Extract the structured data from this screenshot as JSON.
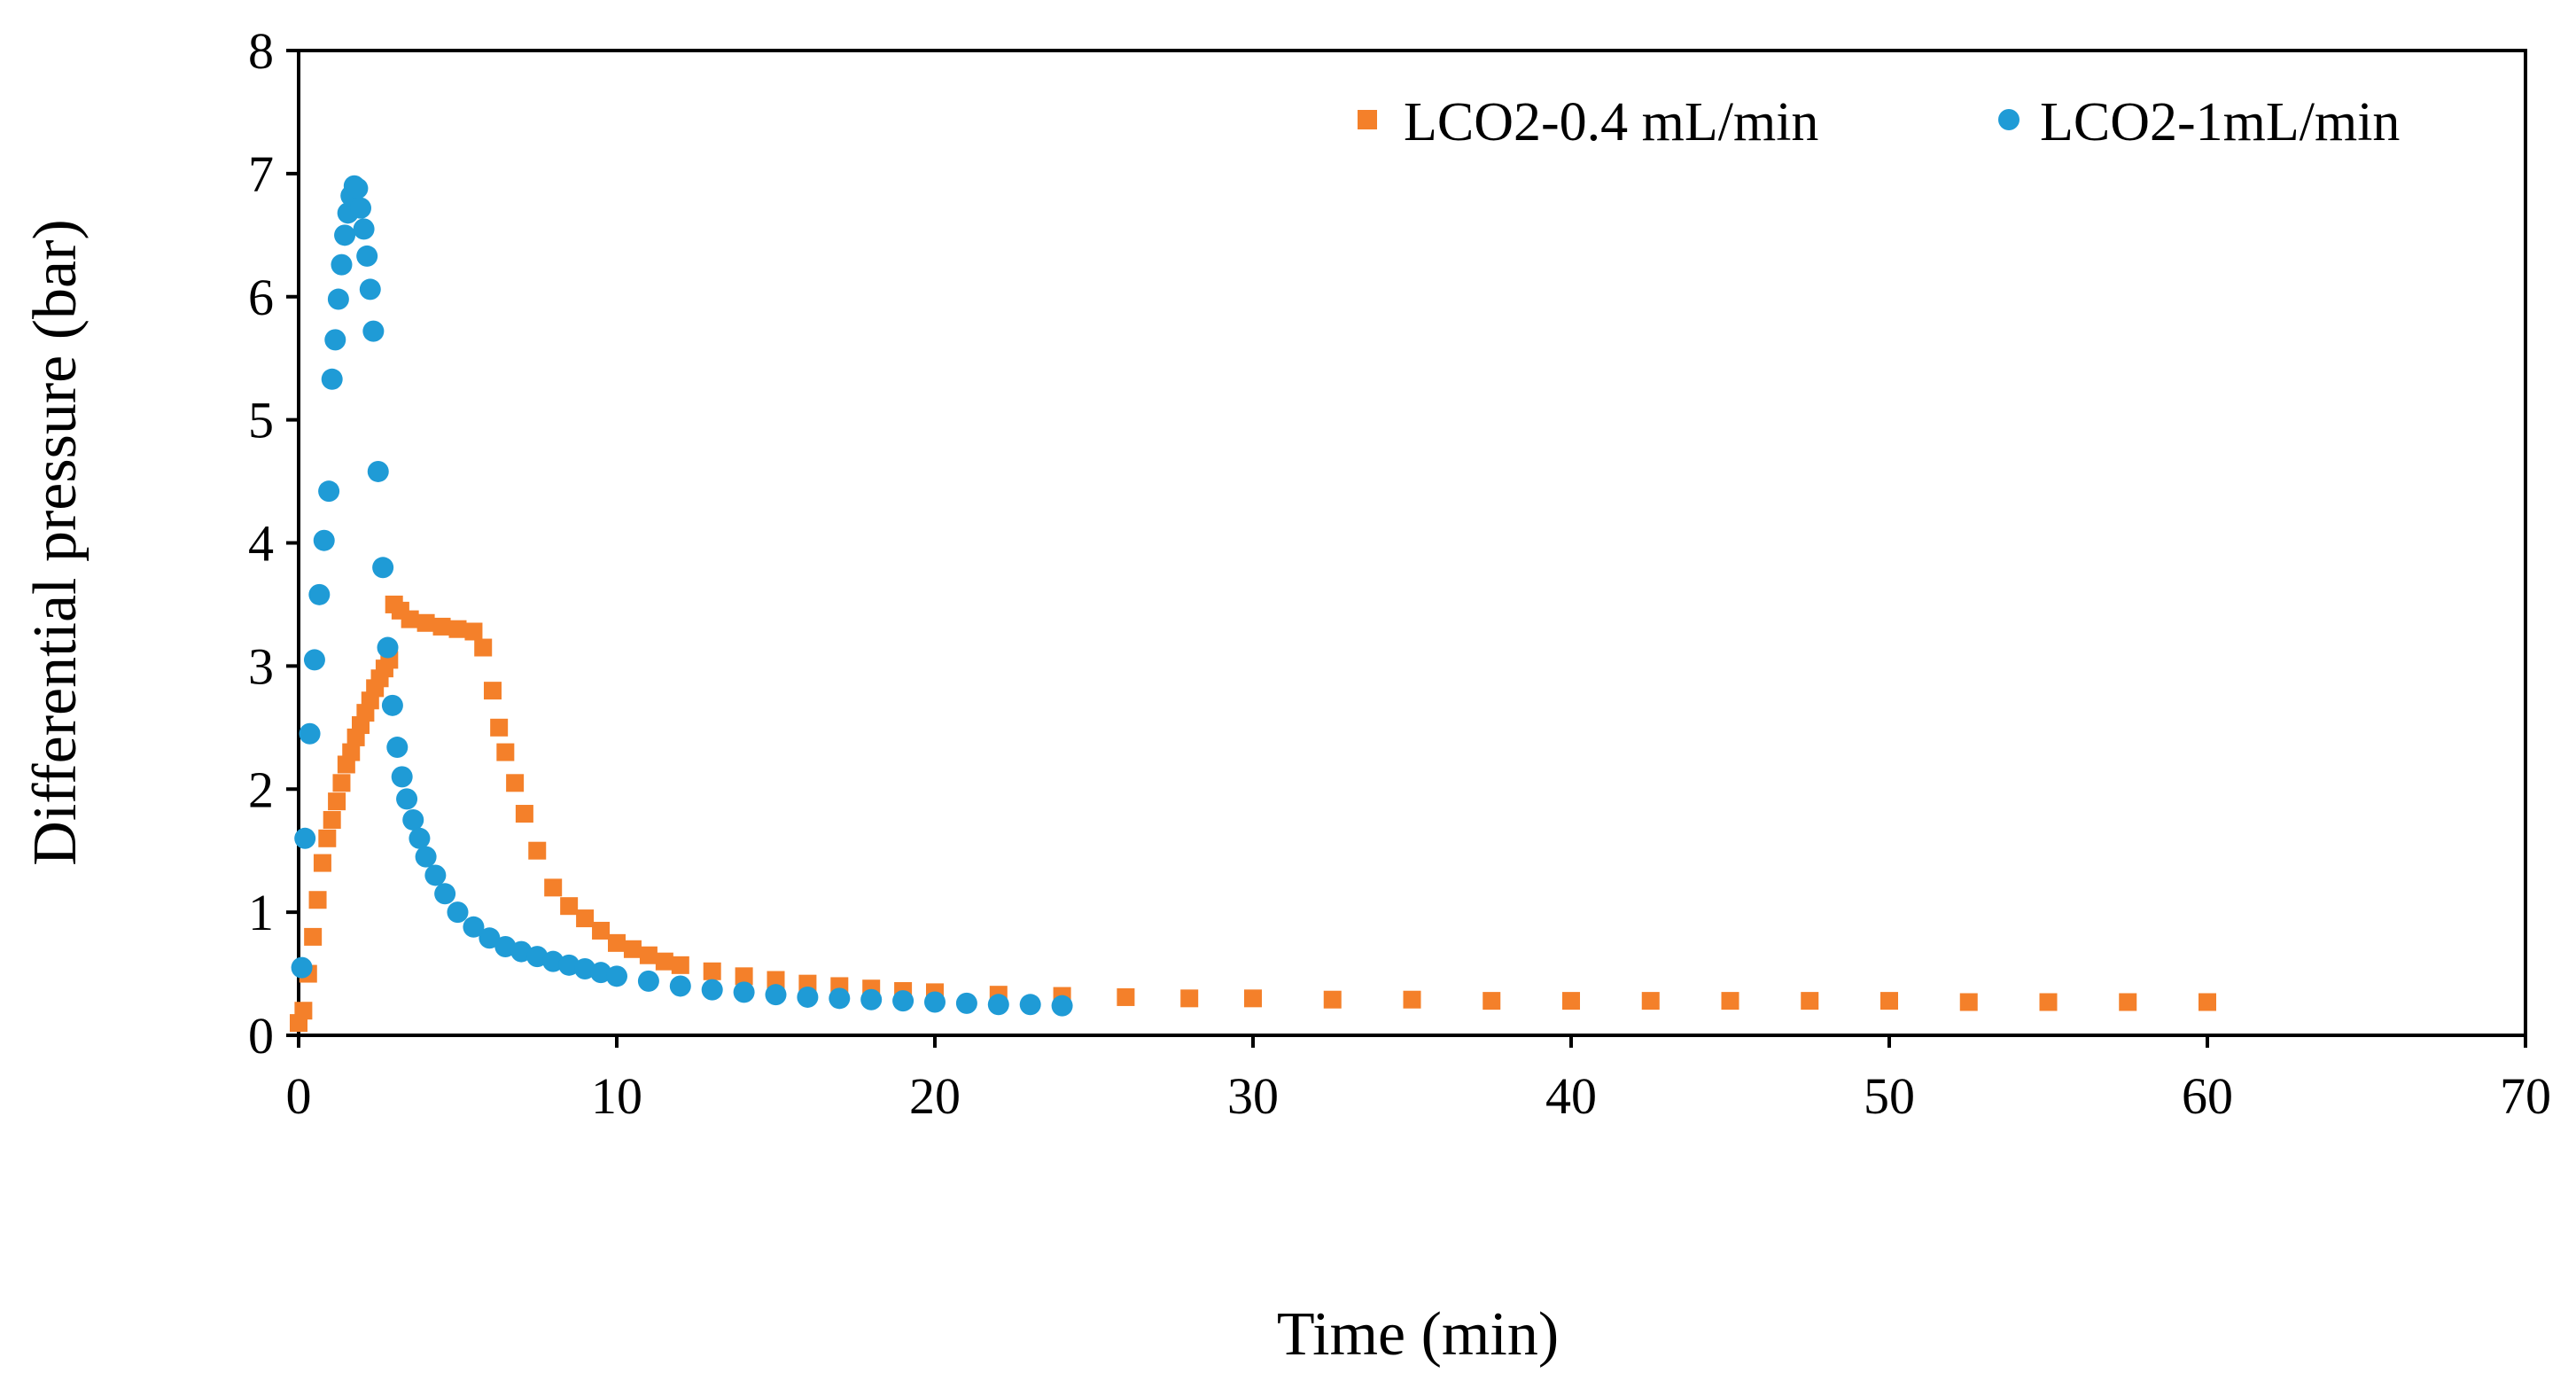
{
  "chart_data": {
    "type": "scatter",
    "title": "",
    "xlabel": "Time (min)",
    "ylabel": "Differential pressure (bar)",
    "xlim": [
      0,
      70
    ],
    "ylim": [
      0,
      8
    ],
    "xticks": [
      0,
      10,
      20,
      30,
      40,
      50,
      60,
      70
    ],
    "yticks": [
      0,
      1,
      2,
      3,
      4,
      5,
      6,
      7,
      8
    ],
    "grid": false,
    "legend_position": "top-right",
    "series": [
      {
        "name": "LCO2-0.4 mL/min",
        "marker": "square",
        "color": "#F4802A",
        "x": [
          0.0,
          0.15,
          0.3,
          0.45,
          0.6,
          0.75,
          0.9,
          1.05,
          1.2,
          1.35,
          1.5,
          1.65,
          1.8,
          1.95,
          2.1,
          2.25,
          2.4,
          2.55,
          2.7,
          2.85,
          3.0,
          3.2,
          3.5,
          4.0,
          4.5,
          5.0,
          5.5,
          5.8,
          6.1,
          6.3,
          6.5,
          6.8,
          7.1,
          7.5,
          8.0,
          8.5,
          9.0,
          9.5,
          10.0,
          10.5,
          11.0,
          11.5,
          12.0,
          13.0,
          14.0,
          15.0,
          16.0,
          17.0,
          18.0,
          19.0,
          20.0,
          22.0,
          24.0,
          26.0,
          28.0,
          30.0,
          32.5,
          35.0,
          37.5,
          40.0,
          42.5,
          45.0,
          47.5,
          50.0,
          52.5,
          55.0,
          57.5,
          60.0
        ],
        "y": [
          0.1,
          0.2,
          0.5,
          0.8,
          1.1,
          1.4,
          1.6,
          1.75,
          1.9,
          2.05,
          2.2,
          2.3,
          2.42,
          2.52,
          2.62,
          2.72,
          2.82,
          2.9,
          2.98,
          3.05,
          3.5,
          3.45,
          3.38,
          3.35,
          3.32,
          3.3,
          3.28,
          3.15,
          2.8,
          2.5,
          2.3,
          2.05,
          1.8,
          1.5,
          1.2,
          1.05,
          0.95,
          0.85,
          0.75,
          0.7,
          0.65,
          0.6,
          0.57,
          0.52,
          0.48,
          0.45,
          0.42,
          0.4,
          0.38,
          0.36,
          0.35,
          0.33,
          0.32,
          0.31,
          0.3,
          0.3,
          0.29,
          0.29,
          0.28,
          0.28,
          0.28,
          0.28,
          0.28,
          0.28,
          0.27,
          0.27,
          0.27,
          0.27
        ]
      },
      {
        "name": "LCO2-1mL/min",
        "marker": "circle",
        "color": "#1F9BD6",
        "x": [
          0.1,
          0.2,
          0.35,
          0.5,
          0.65,
          0.8,
          0.95,
          1.05,
          1.15,
          1.25,
          1.35,
          1.45,
          1.55,
          1.65,
          1.75,
          1.85,
          1.95,
          2.05,
          2.15,
          2.25,
          2.35,
          2.5,
          2.65,
          2.8,
          2.95,
          3.1,
          3.25,
          3.4,
          3.6,
          3.8,
          4.0,
          4.3,
          4.6,
          5.0,
          5.5,
          6.0,
          6.5,
          7.0,
          7.5,
          8.0,
          8.5,
          9.0,
          9.5,
          10.0,
          11.0,
          12.0,
          13.0,
          14.0,
          15.0,
          16.0,
          17.0,
          18.0,
          19.0,
          20.0,
          21.0,
          22.0,
          23.0,
          24.0
        ],
        "y": [
          0.55,
          1.6,
          2.45,
          3.05,
          3.58,
          4.02,
          4.42,
          5.33,
          5.65,
          5.98,
          6.26,
          6.5,
          6.68,
          6.82,
          6.9,
          6.88,
          6.72,
          6.55,
          6.33,
          6.06,
          5.72,
          4.58,
          3.8,
          3.15,
          2.68,
          2.34,
          2.1,
          1.92,
          1.75,
          1.6,
          1.45,
          1.3,
          1.15,
          1.0,
          0.88,
          0.79,
          0.72,
          0.68,
          0.64,
          0.6,
          0.57,
          0.54,
          0.51,
          0.48,
          0.44,
          0.4,
          0.37,
          0.35,
          0.33,
          0.31,
          0.3,
          0.29,
          0.28,
          0.27,
          0.26,
          0.25,
          0.25,
          0.24
        ]
      }
    ]
  }
}
